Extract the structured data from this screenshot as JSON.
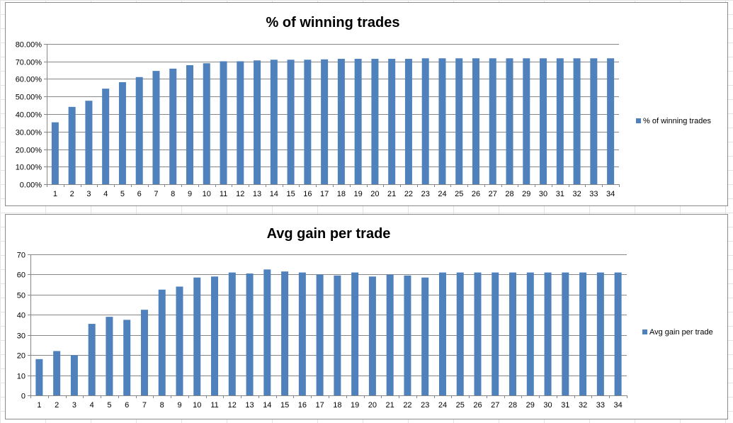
{
  "colors": {
    "bar": "#4f81bd",
    "grid": "#868686",
    "axis": "#868686"
  },
  "chart_data": [
    {
      "type": "bar",
      "title": "% of winning trades",
      "xlabel": "",
      "ylabel": "",
      "ylim": [
        0,
        0.8
      ],
      "y_ticks": [
        "0.00%",
        "10.00%",
        "20.00%",
        "30.00%",
        "40.00%",
        "50.00%",
        "60.00%",
        "70.00%",
        "80.00%"
      ],
      "grid": true,
      "legend_position": "right",
      "categories": [
        "1",
        "2",
        "3",
        "4",
        "5",
        "6",
        "7",
        "8",
        "9",
        "10",
        "11",
        "12",
        "13",
        "14",
        "15",
        "16",
        "17",
        "18",
        "19",
        "20",
        "21",
        "22",
        "23",
        "24",
        "25",
        "26",
        "27",
        "28",
        "29",
        "30",
        "31",
        "32",
        "33",
        "34"
      ],
      "series": [
        {
          "name": "% of winning trades",
          "values": [
            0.353,
            0.441,
            0.476,
            0.545,
            0.582,
            0.611,
            0.646,
            0.659,
            0.679,
            0.69,
            0.701,
            0.701,
            0.706,
            0.71,
            0.71,
            0.71,
            0.712,
            0.715,
            0.715,
            0.715,
            0.715,
            0.715,
            0.718,
            0.718,
            0.718,
            0.718,
            0.718,
            0.718,
            0.718,
            0.718,
            0.718,
            0.718,
            0.718,
            0.718
          ]
        }
      ]
    },
    {
      "type": "bar",
      "title": "Avg gain per trade",
      "xlabel": "",
      "ylabel": "",
      "ylim": [
        0,
        70
      ],
      "y_ticks": [
        "0",
        "10",
        "20",
        "30",
        "40",
        "50",
        "60",
        "70"
      ],
      "grid": true,
      "legend_position": "right",
      "categories": [
        "1",
        "2",
        "3",
        "4",
        "5",
        "6",
        "7",
        "8",
        "9",
        "10",
        "11",
        "12",
        "13",
        "14",
        "15",
        "16",
        "17",
        "18",
        "19",
        "20",
        "21",
        "22",
        "23",
        "24",
        "25",
        "26",
        "27",
        "28",
        "29",
        "30",
        "31",
        "32",
        "33",
        "34"
      ],
      "series": [
        {
          "name": "Avg gain per trade",
          "values": [
            18,
            22,
            20,
            35.5,
            39,
            37.5,
            42.5,
            52.5,
            54,
            58.5,
            59,
            61,
            60.5,
            62.5,
            61.5,
            61,
            60,
            59.5,
            61,
            59,
            60,
            59.5,
            58.5,
            61,
            61,
            61,
            61,
            61,
            61,
            61,
            61,
            61,
            61,
            61
          ]
        }
      ]
    }
  ]
}
